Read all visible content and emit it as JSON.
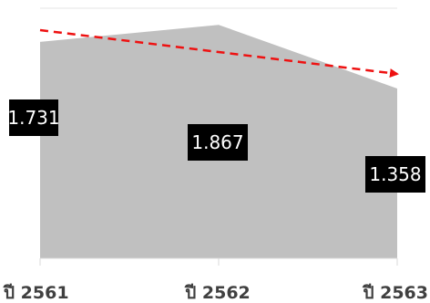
{
  "chart_data": {
    "type": "area",
    "categories": [
      "ปี 2561",
      "ปี 2562",
      "ปี 2563"
    ],
    "series": [
      {
        "values": [
          1.731,
          1.867,
          1.358
        ],
        "data_labels": [
          "1.731",
          "1.867",
          "1.358"
        ],
        "color": "#c0c0c0"
      }
    ],
    "ylim": [
      0,
      2.0
    ],
    "grid": false,
    "legend": "none",
    "trend_arrow": {
      "color": "#ee1111",
      "style": "dashed",
      "direction": "down"
    },
    "label_box_color": "#000000",
    "label_text_color": "#ffffff",
    "axis_color": "#d9d9d9"
  }
}
